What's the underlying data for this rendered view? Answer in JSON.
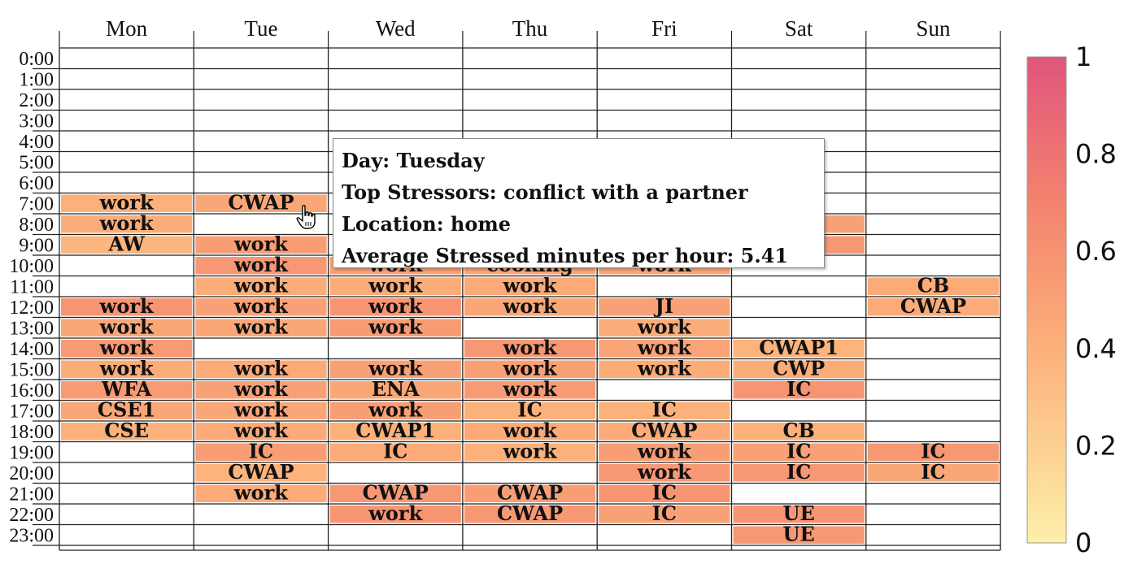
{
  "chart_data": {
    "type": "heatmap",
    "days": [
      "Mon",
      "Tue",
      "Wed",
      "Thu",
      "Fri",
      "Sat",
      "Sun"
    ],
    "hours": [
      "0:00",
      "1:00",
      "2:00",
      "3:00",
      "4:00",
      "5:00",
      "6:00",
      "7:00",
      "8:00",
      "9:00",
      "10:00",
      "11:00",
      "12:00",
      "13:00",
      "14:00",
      "15:00",
      "16:00",
      "17:00",
      "18:00",
      "19:00",
      "20:00",
      "21:00",
      "22:00",
      "23:00"
    ],
    "color_scale": {
      "min": 0,
      "max": 1,
      "ticks": [
        "0",
        "0.2",
        "0.4",
        "0.6",
        "0.8",
        "1"
      ],
      "low_color": "#fdefaa",
      "high_color": "#e0557c"
    },
    "cells": [
      {
        "day": "Mon",
        "hour": "7:00",
        "label": "work",
        "value": 0.4
      },
      {
        "day": "Mon",
        "hour": "8:00",
        "label": "work",
        "value": 0.42
      },
      {
        "day": "Mon",
        "hour": "9:00",
        "label": "AW",
        "value": 0.36
      },
      {
        "day": "Mon",
        "hour": "12:00",
        "label": "work",
        "value": 0.58
      },
      {
        "day": "Mon",
        "hour": "13:00",
        "label": "work",
        "value": 0.46
      },
      {
        "day": "Mon",
        "hour": "14:00",
        "label": "work",
        "value": 0.55
      },
      {
        "day": "Mon",
        "hour": "15:00",
        "label": "work",
        "value": 0.42
      },
      {
        "day": "Mon",
        "hour": "16:00",
        "label": "WFA",
        "value": 0.55
      },
      {
        "day": "Mon",
        "hour": "17:00",
        "label": "CSE1",
        "value": 0.46
      },
      {
        "day": "Mon",
        "hour": "18:00",
        "label": "CSE",
        "value": 0.4
      },
      {
        "day": "Tue",
        "hour": "7:00",
        "label": "CWAP",
        "value": 0.46
      },
      {
        "day": "Tue",
        "hour": "9:00",
        "label": "work",
        "value": 0.52
      },
      {
        "day": "Tue",
        "hour": "10:00",
        "label": "work",
        "value": 0.56
      },
      {
        "day": "Tue",
        "hour": "11:00",
        "label": "work",
        "value": 0.42
      },
      {
        "day": "Tue",
        "hour": "12:00",
        "label": "work",
        "value": 0.5
      },
      {
        "day": "Tue",
        "hour": "13:00",
        "label": "work",
        "value": 0.46
      },
      {
        "day": "Tue",
        "hour": "15:00",
        "label": "work",
        "value": 0.44
      },
      {
        "day": "Tue",
        "hour": "16:00",
        "label": "work",
        "value": 0.5
      },
      {
        "day": "Tue",
        "hour": "17:00",
        "label": "work",
        "value": 0.46
      },
      {
        "day": "Tue",
        "hour": "18:00",
        "label": "work",
        "value": 0.44
      },
      {
        "day": "Tue",
        "hour": "19:00",
        "label": "IC",
        "value": 0.52
      },
      {
        "day": "Tue",
        "hour": "20:00",
        "label": "CWAP",
        "value": 0.38
      },
      {
        "day": "Tue",
        "hour": "21:00",
        "label": "work",
        "value": 0.44
      },
      {
        "day": "Wed",
        "hour": "10:00",
        "label": "work",
        "value": 0.5
      },
      {
        "day": "Wed",
        "hour": "11:00",
        "label": "work",
        "value": 0.42
      },
      {
        "day": "Wed",
        "hour": "12:00",
        "label": "work",
        "value": 0.58
      },
      {
        "day": "Wed",
        "hour": "13:00",
        "label": "work",
        "value": 0.54
      },
      {
        "day": "Wed",
        "hour": "15:00",
        "label": "work",
        "value": 0.5
      },
      {
        "day": "Wed",
        "hour": "16:00",
        "label": "ENA",
        "value": 0.46
      },
      {
        "day": "Wed",
        "hour": "17:00",
        "label": "work",
        "value": 0.52
      },
      {
        "day": "Wed",
        "hour": "18:00",
        "label": "CWAP1",
        "value": 0.4
      },
      {
        "day": "Wed",
        "hour": "19:00",
        "label": "IC",
        "value": 0.44
      },
      {
        "day": "Wed",
        "hour": "21:00",
        "label": "CWAP",
        "value": 0.56
      },
      {
        "day": "Wed",
        "hour": "22:00",
        "label": "work",
        "value": 0.58
      },
      {
        "day": "Thu",
        "hour": "10:00",
        "label": "cooking",
        "value": 0.48
      },
      {
        "day": "Thu",
        "hour": "11:00",
        "label": "work",
        "value": 0.44
      },
      {
        "day": "Thu",
        "hour": "12:00",
        "label": "work",
        "value": 0.46
      },
      {
        "day": "Thu",
        "hour": "14:00",
        "label": "work",
        "value": 0.56
      },
      {
        "day": "Thu",
        "hour": "15:00",
        "label": "work",
        "value": 0.5
      },
      {
        "day": "Thu",
        "hour": "16:00",
        "label": "work",
        "value": 0.54
      },
      {
        "day": "Thu",
        "hour": "17:00",
        "label": "IC",
        "value": 0.4
      },
      {
        "day": "Thu",
        "hour": "18:00",
        "label": "work",
        "value": 0.44
      },
      {
        "day": "Thu",
        "hour": "19:00",
        "label": "work",
        "value": 0.4
      },
      {
        "day": "Thu",
        "hour": "21:00",
        "label": "CWAP",
        "value": 0.52
      },
      {
        "day": "Thu",
        "hour": "22:00",
        "label": "CWAP",
        "value": 0.56
      },
      {
        "day": "Fri",
        "hour": "10:00",
        "label": "work",
        "value": 0.46
      },
      {
        "day": "Fri",
        "hour": "12:00",
        "label": "JI",
        "value": 0.5
      },
      {
        "day": "Fri",
        "hour": "13:00",
        "label": "work",
        "value": 0.42
      },
      {
        "day": "Fri",
        "hour": "14:00",
        "label": "work",
        "value": 0.48
      },
      {
        "day": "Fri",
        "hour": "15:00",
        "label": "work",
        "value": 0.42
      },
      {
        "day": "Fri",
        "hour": "17:00",
        "label": "IC",
        "value": 0.4
      },
      {
        "day": "Fri",
        "hour": "18:00",
        "label": "CWAP",
        "value": 0.44
      },
      {
        "day": "Fri",
        "hour": "19:00",
        "label": "work",
        "value": 0.52
      },
      {
        "day": "Fri",
        "hour": "20:00",
        "label": "work",
        "value": 0.56
      },
      {
        "day": "Fri",
        "hour": "21:00",
        "label": "IC",
        "value": 0.58
      },
      {
        "day": "Fri",
        "hour": "22:00",
        "label": "IC",
        "value": 0.5
      },
      {
        "day": "Sat",
        "hour": "8:00",
        "label": "",
        "value": 0.5
      },
      {
        "day": "Sat",
        "hour": "9:00",
        "label": "",
        "value": 0.56
      },
      {
        "day": "Sat",
        "hour": "14:00",
        "label": "CWAP1",
        "value": 0.38
      },
      {
        "day": "Sat",
        "hour": "15:00",
        "label": "CWP",
        "value": 0.42
      },
      {
        "day": "Sat",
        "hour": "16:00",
        "label": "IC",
        "value": 0.58
      },
      {
        "day": "Sat",
        "hour": "18:00",
        "label": "CB",
        "value": 0.4
      },
      {
        "day": "Sat",
        "hour": "19:00",
        "label": "IC",
        "value": 0.5
      },
      {
        "day": "Sat",
        "hour": "20:00",
        "label": "IC",
        "value": 0.56
      },
      {
        "day": "Sat",
        "hour": "22:00",
        "label": "UE",
        "value": 0.58
      },
      {
        "day": "Sat",
        "hour": "23:00",
        "label": "UE",
        "value": 0.56
      },
      {
        "day": "Sun",
        "hour": "11:00",
        "label": "CB",
        "value": 0.44
      },
      {
        "day": "Sun",
        "hour": "12:00",
        "label": "CWAP",
        "value": 0.44
      },
      {
        "day": "Sun",
        "hour": "19:00",
        "label": "IC",
        "value": 0.56
      },
      {
        "day": "Sun",
        "hour": "20:00",
        "label": "IC",
        "value": 0.46
      }
    ]
  },
  "tooltip": {
    "day": "Day: Tuesday",
    "stressors": "Top Stressors: conflict with a partner",
    "location": "Location: home",
    "average": "Average Stressed minutes per hour: 5.41"
  },
  "cursor": {
    "icon": "hand-pointer-icon"
  }
}
